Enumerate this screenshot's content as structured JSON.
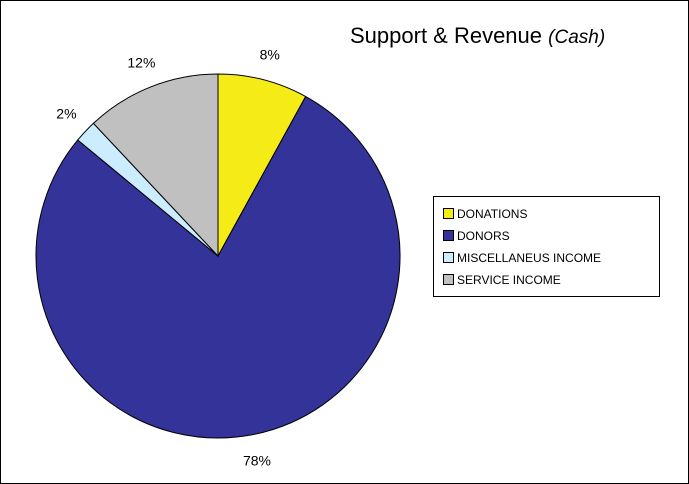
{
  "chart_data": {
    "type": "pie",
    "title": "Support & Revenue",
    "subtitle": "(Cash)",
    "legend_position": "right",
    "categories": [
      "DONATIONS",
      "DONORS",
      "MISCELLANEUS INCOME",
      "SERVICE INCOME"
    ],
    "values": [
      8,
      78,
      2,
      12
    ],
    "labels": [
      "8%",
      "78%",
      "2%",
      "12%"
    ],
    "colors": [
      "#F5EB17",
      "#333399",
      "#CCECFF",
      "#C0C0C0"
    ]
  }
}
